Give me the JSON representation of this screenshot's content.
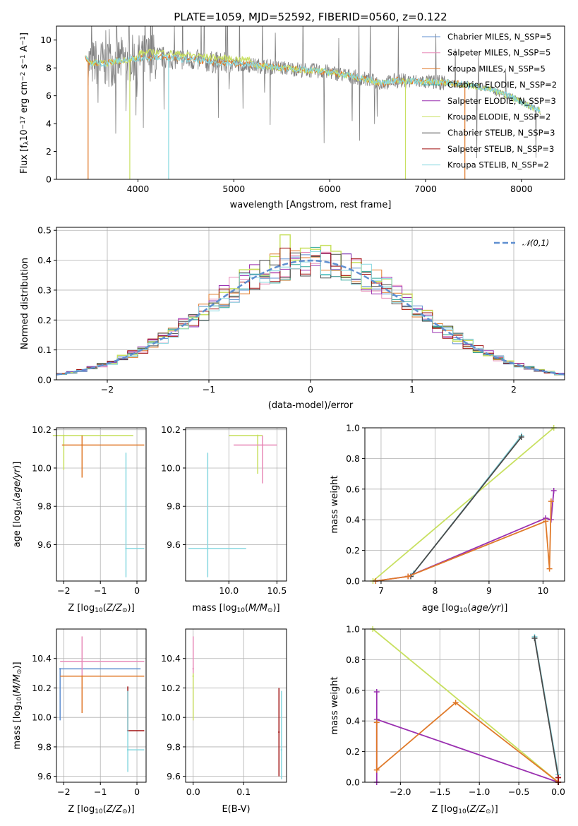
{
  "title": "PLATE=1059, MJD=52592, FIBERID=0560, z=0.122",
  "colors": {
    "Chabrier MILES": "#5f8fd0",
    "Salpeter MILES": "#e88ab8",
    "Kroupa MILES": "#e07a2a",
    "Chabrier ELODIE": "#2ea89a",
    "Salpeter ELODIE": "#9a30b0",
    "Kroupa ELODIE": "#c8e060",
    "Chabrier STELIB": "#4a4a4a",
    "Salpeter STELIB": "#a01010",
    "Kroupa STELIB": "#88d8e0",
    "data": "#808080",
    "normal": "#5f8fd0"
  },
  "chart_data": [
    {
      "id": "spectrum",
      "type": "line",
      "xlabel": "wavelength [Angstrom, rest frame]",
      "ylabel": "Flux [f_λ10^-17 erg cm^-2 s^-1 A^-1]",
      "xlim": [
        3150,
        8450
      ],
      "ylim": [
        0,
        11
      ],
      "xticks": [
        4000,
        5000,
        6000,
        7000,
        8000
      ],
      "yticks": [
        0,
        2,
        4,
        6,
        8,
        10
      ],
      "grid": false,
      "legend": "top-right",
      "legend_labels": [
        "Chabrier MILES, N_SSP=5",
        "Salpeter MILES, N_SSP=5",
        "Kroupa MILES, N_SSP=5",
        "Chabrier ELODIE, N_SSP=2",
        "Salpeter ELODIE, N_SSP=3",
        "Kroupa ELODIE, N_SSP=2",
        "Chabrier STELIB, N_SSP=3",
        "Salpeter STELIB, N_SSP=3",
        "Kroupa STELIB, N_SSP=2"
      ],
      "data_range": [
        3480,
        8200
      ],
      "model_curve": {
        "x": [
          3450,
          3500,
          3560,
          3650,
          3800,
          4000,
          4200,
          4500,
          4800,
          5000,
          5200,
          5500,
          6000,
          6300,
          6550,
          6700,
          7000,
          7300,
          7600,
          7900,
          8200
        ],
        "y": [
          8.8,
          8.3,
          8.4,
          8.3,
          8.5,
          8.7,
          8.8,
          8.6,
          8.4,
          8.3,
          8.2,
          8.0,
          7.7,
          7.3,
          6.9,
          7.1,
          7.0,
          6.9,
          6.6,
          5.9,
          4.9
        ]
      }
    },
    {
      "id": "residuals",
      "type": "line",
      "xlabel": "(data-model)/error",
      "ylabel": "Normed distribution",
      "xlim": [
        -2.5,
        2.5
      ],
      "ylim": [
        0,
        0.51
      ],
      "xticks": [
        -2,
        -1,
        0,
        1,
        2
      ],
      "yticks": [
        0.0,
        0.1,
        0.2,
        0.3,
        0.4,
        0.5
      ],
      "grid": true,
      "legend": "top-right",
      "legend_label": "𝒩(0,1)"
    },
    {
      "id": "age-vs-Z",
      "type": "scatter",
      "xlabel": "Z [log10(Z/Z⊙)]",
      "ylabel": "age [log10(age/yr)]",
      "xlim": [
        -2.2,
        0.25
      ],
      "ylim": [
        9.41,
        10.21
      ],
      "xticks": [
        -2,
        -1,
        0
      ],
      "yticks": [
        9.6,
        9.8,
        10.0,
        10.2
      ],
      "grid": true,
      "points": [
        {
          "x": -2.0,
          "y": 10.17,
          "xerr": [
            0.3,
            1.9
          ],
          "yerr": [
            0.18,
            0.0
          ],
          "model": "Kroupa ELODIE"
        },
        {
          "x": -1.5,
          "y": 10.12,
          "xerr": [
            0.55,
            1.7
          ],
          "yerr": [
            0.17,
            0.05
          ],
          "model": "Kroupa MILES"
        },
        {
          "x": -0.3,
          "y": 9.58,
          "xerr": [
            0.0,
            0.5
          ],
          "yerr": [
            0.15,
            0.5
          ],
          "model": "Kroupa STELIB"
        }
      ]
    },
    {
      "id": "age-vs-mass",
      "type": "scatter",
      "xlabel": "mass [log10(M/M⊙)]",
      "ylabel": "",
      "xlim": [
        9.55,
        10.6
      ],
      "ylim": [
        9.41,
        10.21
      ],
      "xticks": [
        10.0,
        10.5
      ],
      "yticks": [
        9.6,
        9.8,
        10.0,
        10.2
      ],
      "grid": true,
      "points": [
        {
          "x": 10.3,
          "y": 10.17,
          "xerr": [
            0.3,
            0.05
          ],
          "yerr": [
            0.2,
            0.0
          ],
          "model": "Kroupa ELODIE"
        },
        {
          "x": 10.35,
          "y": 10.12,
          "xerr": [
            0.3,
            0.15
          ],
          "yerr": [
            0.2,
            0.05
          ],
          "model": "Salpeter MILES"
        },
        {
          "x": 9.78,
          "y": 9.58,
          "xerr": [
            0.2,
            0.4
          ],
          "yerr": [
            0.15,
            0.5
          ],
          "model": "Kroupa STELIB"
        }
      ]
    },
    {
      "id": "weight-vs-age",
      "type": "line",
      "xlabel": "age [log10(age/yr)]",
      "ylabel": "mass weight",
      "xlim": [
        6.7,
        10.4
      ],
      "ylim": [
        0.0,
        1.0
      ],
      "xticks": [
        7,
        8,
        9,
        10
      ],
      "yticks": [
        0.0,
        0.2,
        0.4,
        0.6,
        0.8,
        1.0
      ],
      "grid": true,
      "series": [
        {
          "model": "Kroupa ELODIE",
          "x": [
            6.85,
            10.2
          ],
          "y": [
            0.0,
            1.0
          ]
        },
        {
          "model": "Kroupa STELIB",
          "x": [
            7.6,
            9.6
          ],
          "y": [
            0.05,
            0.95
          ]
        },
        {
          "model": "Chabrier STELIB",
          "x": [
            7.55,
            9.6
          ],
          "y": [
            0.03,
            0.94
          ]
        },
        {
          "model": "Salpeter ELODIE",
          "x": [
            6.9,
            7.5,
            10.05,
            10.15,
            10.2
          ],
          "y": [
            0.0,
            0.03,
            0.41,
            0.4,
            0.59
          ]
        },
        {
          "model": "Kroupa MILES",
          "x": [
            6.9,
            7.5,
            10.05,
            10.12,
            10.15
          ],
          "y": [
            0.0,
            0.03,
            0.39,
            0.08,
            0.52
          ]
        }
      ]
    },
    {
      "id": "mass-vs-Z",
      "type": "scatter",
      "xlabel": "Z [log10(Z/Z⊙)]",
      "ylabel": "mass [log10(M/M⊙)]",
      "xlim": [
        -2.2,
        0.25
      ],
      "ylim": [
        9.56,
        10.6
      ],
      "xticks": [
        -2,
        -1,
        0
      ],
      "yticks": [
        9.6,
        9.8,
        10.0,
        10.2,
        10.4
      ],
      "grid": true,
      "points": [
        {
          "x": -2.1,
          "y": 10.33,
          "xerr": [
            0.0,
            2.2
          ],
          "yerr": [
            0.35,
            0.0
          ],
          "model": "Chabrier MILES"
        },
        {
          "x": -1.5,
          "y": 10.38,
          "xerr": [
            0.6,
            1.7
          ],
          "yerr": [
            0.35,
            0.17
          ],
          "model": "Salpeter MILES"
        },
        {
          "x": -1.5,
          "y": 10.28,
          "xerr": [
            0.6,
            1.7
          ],
          "yerr": [
            0.25,
            0.0
          ],
          "model": "Kroupa MILES"
        },
        {
          "x": -0.25,
          "y": 9.91,
          "xerr": [
            0.0,
            0.45
          ],
          "yerr": [
            0.0,
            0.3
          ],
          "model": "Salpeter STELIB"
        },
        {
          "x": -0.25,
          "y": 9.78,
          "xerr": [
            0.0,
            0.45
          ],
          "yerr": [
            0.15,
            0.4
          ],
          "model": "Kroupa STELIB"
        }
      ]
    },
    {
      "id": "mass-vs-ebv",
      "type": "scatter",
      "xlabel": "E(B-V)",
      "ylabel": "",
      "xlim": [
        -0.015,
        0.185
      ],
      "ylim": [
        9.56,
        10.6
      ],
      "xticks": [
        0.0,
        0.1
      ],
      "yticks": [
        9.6,
        9.8,
        10.0,
        10.2,
        10.4
      ],
      "grid": true,
      "points": [
        {
          "x": 0.0,
          "y": 10.33,
          "yerr": [
            0.35,
            0.22
          ],
          "model": "Salpeter MILES"
        },
        {
          "x": 0.0,
          "y": 10.28,
          "yerr": [
            0.3,
            0.02
          ],
          "model": "Kroupa ELODIE"
        },
        {
          "x": 0.17,
          "y": 9.9,
          "yerr": [
            0.3,
            0.3
          ],
          "model": "Salpeter STELIB"
        },
        {
          "x": 0.175,
          "y": 9.78,
          "yerr": [
            0.2,
            0.4
          ],
          "model": "Kroupa STELIB"
        }
      ]
    },
    {
      "id": "weight-vs-Z",
      "type": "line",
      "xlabel": "Z [log10(Z/Z⊙)]",
      "ylabel": "mass weight",
      "xlim": [
        -2.45,
        0.08
      ],
      "ylim": [
        0.0,
        1.0
      ],
      "xticks": [
        -2.0,
        -1.5,
        -1.0,
        -0.5,
        0.0
      ],
      "yticks": [
        0.0,
        0.2,
        0.4,
        0.6,
        0.8,
        1.0
      ],
      "grid": true,
      "series": [
        {
          "model": "Kroupa ELODIE",
          "x": [
            -2.35,
            0.0
          ],
          "y": [
            1.0,
            0.0
          ]
        },
        {
          "model": "Kroupa STELIB",
          "x": [
            -0.3,
            0.0
          ],
          "y": [
            0.95,
            0.05
          ]
        },
        {
          "model": "Chabrier STELIB",
          "x": [
            -0.3,
            0.0
          ],
          "y": [
            0.94,
            0.03
          ]
        },
        {
          "model": "Salpeter ELODIE",
          "x": [
            -2.3,
            -2.3,
            -2.3,
            0.0
          ],
          "y": [
            0.59,
            0.0,
            0.41,
            0.0
          ]
        },
        {
          "model": "Kroupa MILES",
          "x": [
            -2.3,
            -2.3,
            -1.3,
            0.0
          ],
          "y": [
            0.39,
            0.08,
            0.52,
            0.0
          ]
        },
        {
          "model": "Salpeter STELIB",
          "x": [
            0.0,
            0.0
          ],
          "y": [
            0.0,
            0.03
          ]
        }
      ]
    }
  ]
}
